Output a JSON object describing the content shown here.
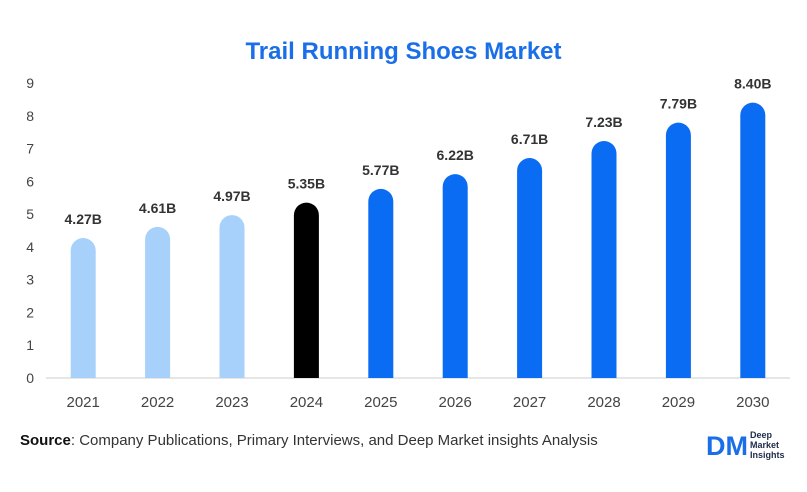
{
  "chart_data": {
    "type": "bar",
    "title": "Trail Running Shoes Market",
    "categories": [
      "2021",
      "2022",
      "2023",
      "2024",
      "2025",
      "2026",
      "2027",
      "2028",
      "2029",
      "2030"
    ],
    "values": [
      4.27,
      4.61,
      4.97,
      5.35,
      5.77,
      6.22,
      6.71,
      7.23,
      7.79,
      8.4
    ],
    "value_labels": [
      "4.27B",
      "4.61B",
      "4.97B",
      "5.35B",
      "5.77B",
      "6.22B",
      "6.71B",
      "7.23B",
      "7.79B",
      "8.40B"
    ],
    "bar_colors": [
      "#a7d0fb",
      "#a7d0fb",
      "#a7d0fb",
      "#000000",
      "#0a6cf2",
      "#0a6cf2",
      "#0a6cf2",
      "#0a6cf2",
      "#0a6cf2",
      "#0a6cf2"
    ],
    "ylim": [
      0,
      9
    ],
    "yticks": [
      "0",
      "1",
      "2",
      "3",
      "4",
      "5",
      "6",
      "7",
      "8",
      "9"
    ],
    "xlabel": "",
    "ylabel": "",
    "grid": false
  },
  "footer": {
    "source_label": "Source",
    "source_text": ": Company Publications, Primary Interviews, and Deep Market insights Analysis"
  },
  "logo": {
    "mark": "DM",
    "line1": "Deep",
    "line2": "Market",
    "line3": "Insights"
  }
}
